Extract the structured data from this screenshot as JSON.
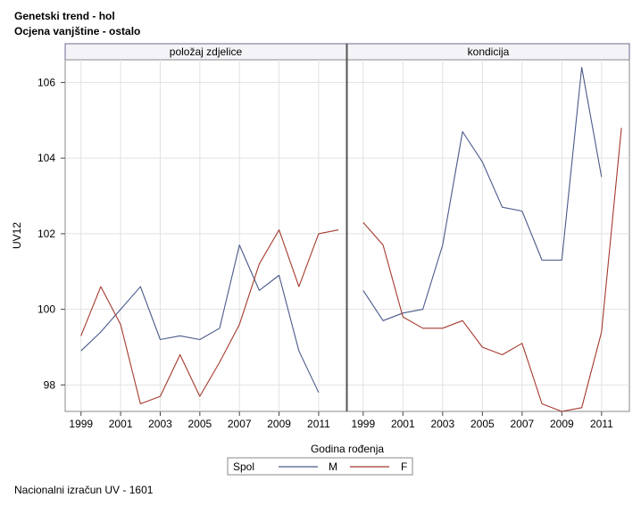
{
  "titles": {
    "line1": "Genetski trend - hol",
    "line2": "Ocjena vanjštine - ostalo"
  },
  "footnote": "Nacionalni izračun UV - 1601",
  "chart_data": {
    "type": "line",
    "xlabel": "Godina rođenja",
    "ylabel": "UV12",
    "ylim": [
      97.3,
      106.6
    ],
    "xlim": [
      1998.2,
      2012.4
    ],
    "yticks": [
      98,
      100,
      102,
      104,
      106
    ],
    "xticks": [
      1999,
      2001,
      2003,
      2005,
      2007,
      2009,
      2011
    ],
    "grid": true,
    "legend": {
      "title": "Spol",
      "position": "bottom",
      "entries": [
        {
          "label": "M",
          "color": "#4a5a8a"
        },
        {
          "label": "F",
          "color": "#a43a2e"
        }
      ]
    },
    "panels": [
      {
        "label": "položaj zdjelice",
        "series": [
          {
            "name": "M",
            "color": "#4a5a8a",
            "x": [
              1999,
              2000,
              2001,
              2002,
              2003,
              2004,
              2005,
              2006,
              2007,
              2008,
              2009,
              2010,
              2011
            ],
            "y": [
              98.9,
              99.4,
              100.0,
              100.6,
              99.2,
              99.3,
              99.2,
              99.5,
              101.7,
              100.5,
              100.9,
              98.9,
              97.8
            ]
          },
          {
            "name": "F",
            "color": "#a43a2e",
            "x": [
              1999,
              2000,
              2001,
              2002,
              2003,
              2004,
              2005,
              2006,
              2007,
              2008,
              2009,
              2010,
              2011,
              2012
            ],
            "y": [
              99.3,
              100.6,
              99.6,
              97.5,
              97.7,
              98.8,
              97.7,
              98.6,
              99.6,
              101.2,
              102.1,
              100.6,
              102.0,
              102.1
            ]
          }
        ]
      },
      {
        "label": "kondicija",
        "series": [
          {
            "name": "M",
            "color": "#4a5a8a",
            "x": [
              1999,
              2000,
              2001,
              2002,
              2003,
              2004,
              2005,
              2006,
              2007,
              2008,
              2009,
              2010,
              2011
            ],
            "y": [
              100.5,
              99.7,
              99.9,
              100.0,
              101.7,
              104.7,
              103.9,
              102.7,
              102.6,
              101.3,
              101.3,
              106.4,
              103.5
            ]
          },
          {
            "name": "F",
            "color": "#a43a2e",
            "x": [
              1999,
              2000,
              2001,
              2002,
              2003,
              2004,
              2005,
              2006,
              2007,
              2008,
              2009,
              2010,
              2011,
              2012
            ],
            "y": [
              102.3,
              101.7,
              99.8,
              99.5,
              99.5,
              99.7,
              99.0,
              98.8,
              99.1,
              97.5,
              97.3,
              97.4,
              99.4,
              104.8
            ]
          }
        ]
      }
    ]
  }
}
